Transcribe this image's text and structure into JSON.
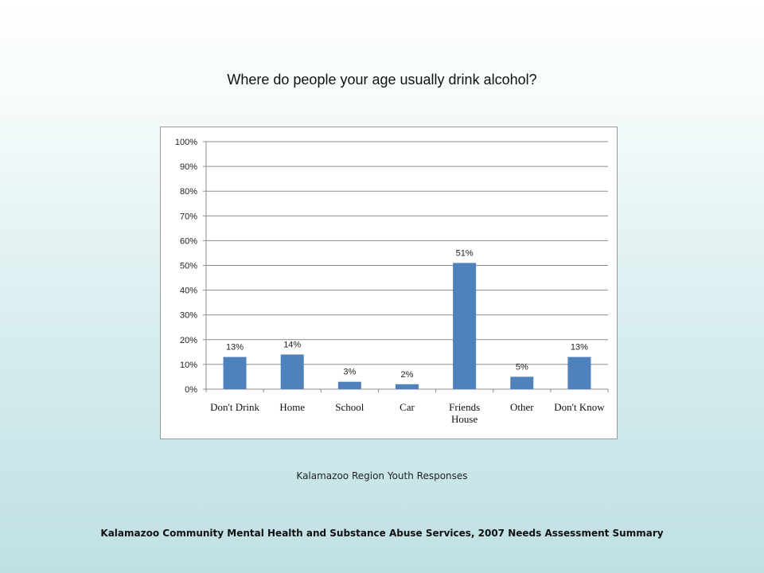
{
  "slide": {
    "title": "Where do people your age usually drink alcohol?",
    "caption": "Kalamazoo Region Youth Responses",
    "source": "Kalamazoo Community Mental Health and Substance Abuse Services, 2007 Needs Assessment Summary"
  },
  "chart_data": {
    "type": "bar",
    "categories": [
      [
        "Don't Drink"
      ],
      [
        "Home"
      ],
      [
        "School"
      ],
      [
        "Car"
      ],
      [
        "Friends",
        "House"
      ],
      [
        "Other"
      ],
      [
        "Don't Know"
      ]
    ],
    "values": [
      13,
      14,
      3,
      2,
      51,
      5,
      13
    ],
    "data_labels": [
      "13%",
      "14%",
      "3%",
      "2%",
      "51%",
      "5%",
      "13%"
    ],
    "y_ticks": [
      "0%",
      "10%",
      "20%",
      "30%",
      "40%",
      "50%",
      "60%",
      "70%",
      "80%",
      "90%",
      "100%"
    ],
    "ylim": [
      0,
      100
    ],
    "grid": true,
    "legend": "none",
    "bar_color": "#4f81bd",
    "gridline_color": "#8c8c8c"
  }
}
